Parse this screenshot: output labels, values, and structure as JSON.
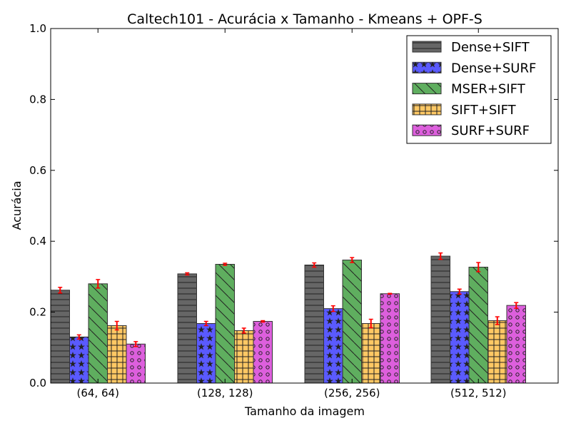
{
  "chart_data": {
    "type": "bar",
    "title": "Caltech101 - Acurácia x Tamanho - Kmeans + OPF-S",
    "xlabel": "Tamanho da imagem",
    "ylabel": "Acurácia",
    "ylim": [
      0,
      1.0
    ],
    "yticks": [
      "0.0",
      "0.2",
      "0.4",
      "0.6",
      "0.8",
      "1.0"
    ],
    "categories": [
      "(64, 64)",
      "(128, 128)",
      "(256, 256)",
      "(512, 512)"
    ],
    "grid": false,
    "legend_position": "top-right",
    "error_bar_color": "#ff0000",
    "series": [
      {
        "name": "Dense+SIFT",
        "color": "#666666",
        "hatch": "horizontal",
        "values": [
          0.262,
          0.308,
          0.333,
          0.358
        ],
        "errors": [
          0.008,
          0.003,
          0.006,
          0.009
        ]
      },
      {
        "name": "Dense+SURF",
        "color": "#5a5aff",
        "hatch": "stars",
        "values": [
          0.13,
          0.168,
          0.21,
          0.258
        ],
        "errors": [
          0.006,
          0.006,
          0.008,
          0.007
        ]
      },
      {
        "name": "MSER+SIFT",
        "color": "#5fae5f",
        "hatch": "diagonal",
        "values": [
          0.28,
          0.335,
          0.347,
          0.327
        ],
        "errors": [
          0.012,
          0.003,
          0.007,
          0.013
        ]
      },
      {
        "name": "SIFT+SIFT",
        "color": "#ffc864",
        "hatch": "grid",
        "values": [
          0.162,
          0.148,
          0.168,
          0.176
        ],
        "errors": [
          0.012,
          0.007,
          0.012,
          0.011
        ]
      },
      {
        "name": "SURF+SURF",
        "color": "#dd5fdd",
        "hatch": "circles",
        "values": [
          0.11,
          0.174,
          0.252,
          0.219
        ],
        "errors": [
          0.007,
          0.002,
          0.001,
          0.008
        ]
      }
    ]
  }
}
